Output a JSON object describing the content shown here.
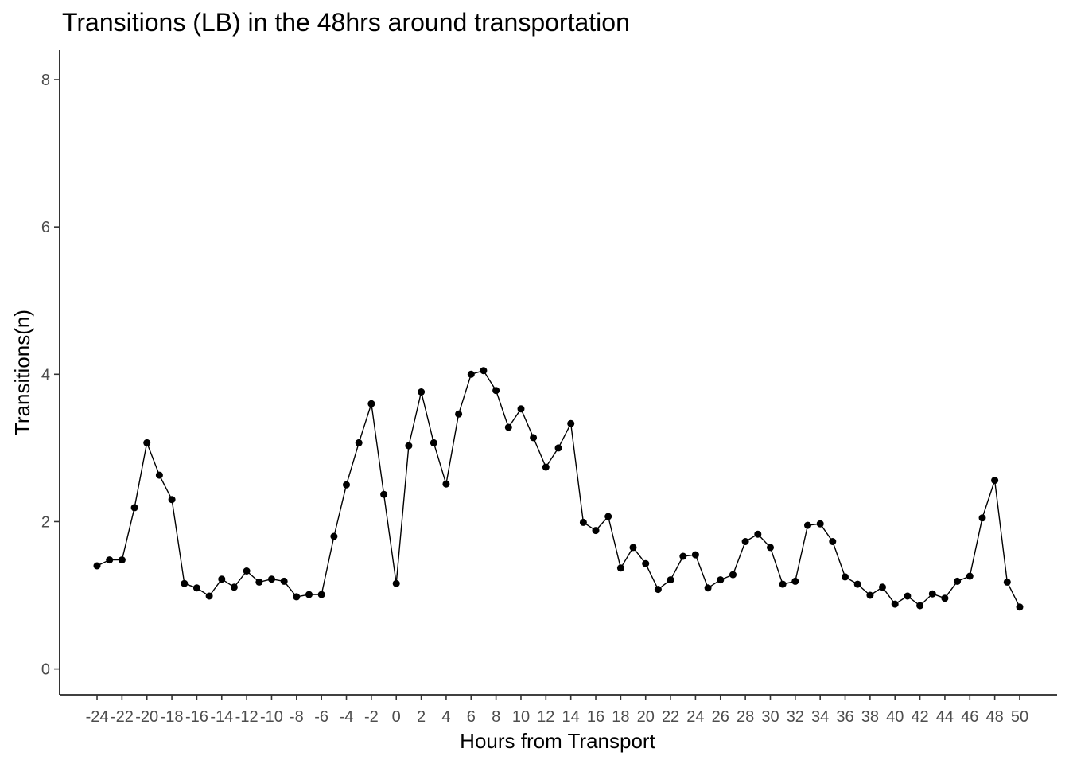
{
  "chart_data": {
    "type": "line",
    "title": "Transitions (LB) in the 48hrs around transportation",
    "xlabel": "Hours from Transport",
    "ylabel": "Transitions(n)",
    "xlim": [
      -27,
      53
    ],
    "ylim": [
      -0.35,
      8.4
    ],
    "grid": false,
    "y_ticks": [
      0,
      2,
      4,
      6,
      8
    ],
    "x_ticks": [
      -24,
      -22,
      -20,
      -18,
      -16,
      -14,
      -12,
      -10,
      -8,
      -6,
      -4,
      -2,
      0,
      2,
      4,
      6,
      8,
      10,
      12,
      14,
      16,
      18,
      20,
      22,
      24,
      26,
      28,
      30,
      32,
      34,
      36,
      38,
      40,
      42,
      44,
      46,
      48,
      50
    ],
    "x_tick_labels": [
      "-24",
      "-22",
      "-20",
      "-18",
      "-16",
      "-14",
      "-12",
      "-10",
      "-8",
      "-6",
      "-4",
      "-2",
      "0",
      "2",
      "4",
      "6",
      "8",
      "10",
      "12",
      "14",
      "16",
      "18",
      "20",
      "22",
      "24",
      "26",
      "28",
      "30",
      "32",
      "34",
      "36",
      "38",
      "40",
      "42",
      "44",
      "46",
      "48",
      "50"
    ],
    "series": [
      {
        "color": "#000000",
        "x": [
          -24,
          -23,
          -22,
          -21,
          -20,
          -19,
          -18,
          -17,
          -16,
          -15,
          -14,
          -13,
          -12,
          -11,
          -10,
          -9,
          -8,
          -7,
          -6,
          -5,
          -4,
          -3,
          -2,
          -1,
          0,
          1,
          2,
          3,
          4,
          5,
          6,
          7,
          8,
          9,
          10,
          11,
          12,
          13,
          14,
          15,
          16,
          17,
          18,
          19,
          20,
          21,
          22,
          23,
          24,
          25,
          26,
          27,
          28,
          29,
          30,
          31,
          32,
          33,
          34,
          35,
          36,
          37,
          38,
          39,
          40,
          41,
          42,
          43,
          44,
          45,
          46,
          47,
          48,
          49,
          50
        ],
        "y": [
          1.4,
          1.48,
          1.48,
          2.19,
          3.07,
          2.63,
          2.3,
          1.16,
          1.1,
          0.99,
          1.22,
          1.11,
          1.33,
          1.18,
          1.22,
          1.19,
          0.98,
          1.01,
          1.01,
          1.8,
          2.5,
          3.07,
          3.6,
          2.37,
          1.16,
          3.03,
          3.76,
          3.07,
          2.51,
          3.46,
          4.0,
          4.05,
          3.78,
          3.28,
          3.53,
          3.14,
          2.74,
          3.0,
          3.33,
          1.99,
          1.88,
          2.07,
          1.37,
          1.65,
          1.43,
          1.08,
          1.21,
          1.53,
          1.55,
          1.1,
          1.21,
          1.28,
          1.73,
          1.83,
          1.65,
          1.15,
          1.19,
          1.95,
          1.97,
          1.73,
          1.25,
          1.15,
          1.0,
          1.11,
          0.88,
          0.99,
          0.86,
          1.02,
          0.96,
          1.19,
          1.26,
          2.05,
          2.56,
          1.18,
          0.84
        ]
      }
    ]
  }
}
